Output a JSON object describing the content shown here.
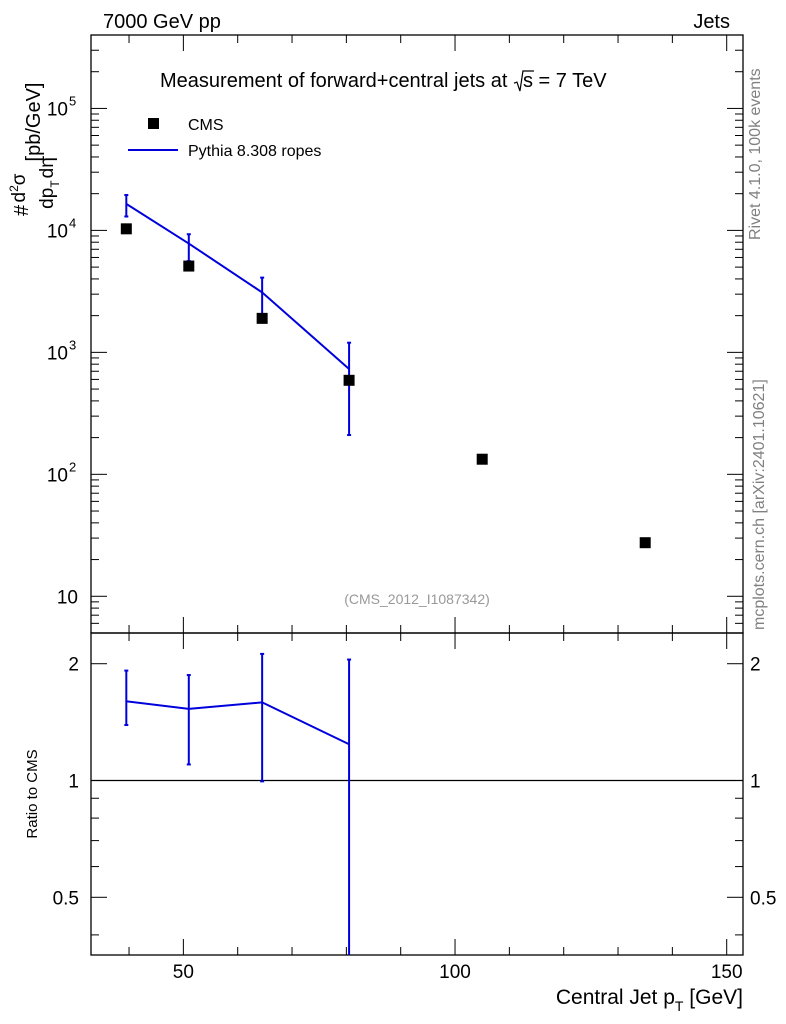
{
  "header": {
    "left": "7000 GeV pp",
    "right": "Jets"
  },
  "side_labels": {
    "rivet": "Rivet 4.1.0,  100k events",
    "mcplots": "mcplots.cern.ch [arXiv:2401.10621]"
  },
  "chart_data": [
    {
      "type": "scatter",
      "panel": "main",
      "title_parts": {
        "before": "Measurement of forward+central jets at ",
        "radicand": "s",
        "after": " = 7 TeV"
      },
      "ylabel": "#  d²σ / dp_T dη  [pb/GeV]",
      "ylabel_parts": {
        "hash": "#",
        "num": "d",
        "num_sup": "2",
        "num_sigma": "σ",
        "den": "dp",
        "den_sub": "T",
        "den_eta": "dη",
        "unit": "[pb/GeV]"
      },
      "yscale": "log",
      "ylim": [
        5,
        400000
      ],
      "yticks": [
        {
          "value": 10,
          "label": "10"
        },
        {
          "value": 100,
          "base": "10",
          "exp": "2"
        },
        {
          "value": 1000,
          "base": "10",
          "exp": "3"
        },
        {
          "value": 10000,
          "base": "10",
          "exp": "4"
        },
        {
          "value": 100000,
          "base": "10",
          "exp": "5"
        }
      ],
      "xlim": [
        33,
        153
      ],
      "watermark": "(CMS_2012_I1087342)",
      "legend": {
        "position": "top-left",
        "entries": [
          {
            "label": "CMS",
            "marker": "square",
            "color": "#000000"
          },
          {
            "label": "Pythia 8.308 ropes",
            "marker": "line",
            "color": "#0000dd"
          }
        ]
      },
      "series": [
        {
          "name": "CMS",
          "marker": "square",
          "color": "#000000",
          "x": [
            39.5,
            51,
            64.5,
            80.5,
            105,
            135
          ],
          "y": [
            10300,
            5100,
            1900,
            590,
            133,
            27.5
          ]
        },
        {
          "name": "Pythia 8.308 ropes",
          "marker": "line",
          "color": "#0000dd",
          "x": [
            39.5,
            51,
            64.5,
            80.5
          ],
          "y": [
            16500,
            7800,
            3100,
            730
          ],
          "err_low": [
            13000,
            5600,
            1900,
            210
          ],
          "err_high": [
            19500,
            9300,
            4100,
            1200
          ]
        }
      ]
    },
    {
      "type": "line",
      "panel": "ratio",
      "ylabel": "Ratio to CMS",
      "yscale": "log",
      "ylim": [
        0.355,
        2.4
      ],
      "yticks": [
        {
          "value": 0.5,
          "label": "0.5"
        },
        {
          "value": 1,
          "label": "1"
        },
        {
          "value": 2,
          "label": "2"
        }
      ],
      "reference": 1,
      "xlabel": "Central Jet p_T [GeV]",
      "xlabel_parts": {
        "main": "Central Jet p",
        "sub": "T",
        "unit": " [GeV]"
      },
      "xlim": [
        33,
        153
      ],
      "xticks": [
        {
          "value": 50,
          "label": "50"
        },
        {
          "value": 100,
          "label": "100"
        },
        {
          "value": 150,
          "label": "150"
        }
      ],
      "series": [
        {
          "name": "Pythia 8.308 ropes",
          "color": "#0000dd",
          "x": [
            39.5,
            51,
            64.5,
            80.5
          ],
          "y": [
            1.6,
            1.53,
            1.59,
            1.24
          ],
          "err_low": [
            1.39,
            1.1,
            0.995,
            0.355
          ],
          "err_high": [
            1.92,
            1.87,
            2.12,
            2.05
          ]
        }
      ]
    }
  ]
}
